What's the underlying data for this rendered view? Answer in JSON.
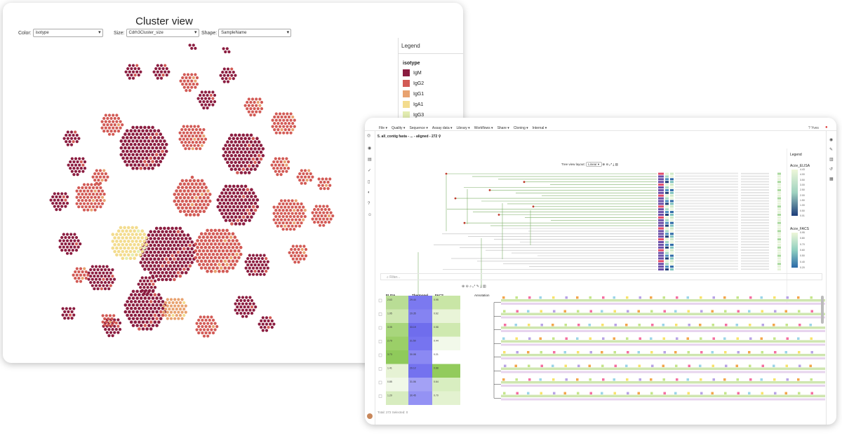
{
  "window1": {
    "title": "Cluster view",
    "controls": [
      {
        "label": "Color:",
        "value": "isotype"
      },
      {
        "label": "Size:",
        "value": "Cdrh3Cluster_size"
      },
      {
        "label": "Shape:",
        "value": "SampleName"
      }
    ],
    "legend": {
      "title": "Legend",
      "subtitle": "isotype",
      "items": [
        {
          "label": "IgM",
          "color": "#8b1d40"
        },
        {
          "label": "IgG2",
          "color": "#d25a55"
        },
        {
          "label": "IgG1",
          "color": "#e8a270"
        },
        {
          "label": "IgA1",
          "color": "#f3dc8e"
        },
        {
          "label": "IgG3",
          "color": "#e4eeb2"
        }
      ]
    }
  },
  "window2": {
    "menu": [
      "File",
      "Quality",
      "Sequence",
      "Assay data",
      "Library",
      "Workflows",
      "Share",
      "Cloning",
      "Internal"
    ],
    "user": "Yves",
    "doc_title": "5. all_contig fasta - ... - aligned - 272",
    "tree_view_layout_label": "Tree view layout:",
    "tree_view_layout_value": "Linear",
    "filter_placeholder": "Filter...",
    "table_columns": [
      "ELISA",
      "Thermogel",
      "FACS"
    ],
    "annotation_label": "Annotation",
    "footer": "Total: 272 Selected: 0",
    "legend": {
      "title": "Legend",
      "scales": [
        {
          "name": "Acov_ELISA",
          "ticks": [
            "4.43",
            "4.00",
            "3.50",
            "3.00",
            "2.50",
            "2.00",
            "1.50",
            "1.00",
            "0.50",
            "0.01"
          ],
          "color_high": "#eef7d9",
          "color_low": "#1d3d7a"
        },
        {
          "name": "Acov_FACS",
          "ticks": [
            "0.95",
            "0.80",
            "0.70",
            "0.60",
            "0.50",
            "0.40",
            "0.20"
          ],
          "color_high": "#eef7d9",
          "color_low": "#2b6aa8"
        }
      ]
    },
    "table_rows": [
      {
        "elisa": "2.63",
        "thermo": "29.44",
        "facs": "0.95"
      },
      {
        "elisa": "1.95",
        "thermo": "29.35",
        "facs": "0.62"
      },
      {
        "elisa": "3.05",
        "thermo": "33.19",
        "facs": "0.58"
      },
      {
        "elisa": "2.79",
        "thermo": "31.50",
        "facs": "0.44"
      },
      {
        "elisa": "3.73",
        "thermo": "30.08",
        "facs": "0.21"
      },
      {
        "elisa": "1.41",
        "thermo": "29.12",
        "facs": "0.88"
      },
      {
        "elisa": "0.85",
        "thermo": "31.06",
        "facs": "0.64"
      },
      {
        "elisa": "1.20",
        "thermo": "30.45",
        "facs": "0.70"
      }
    ]
  }
}
